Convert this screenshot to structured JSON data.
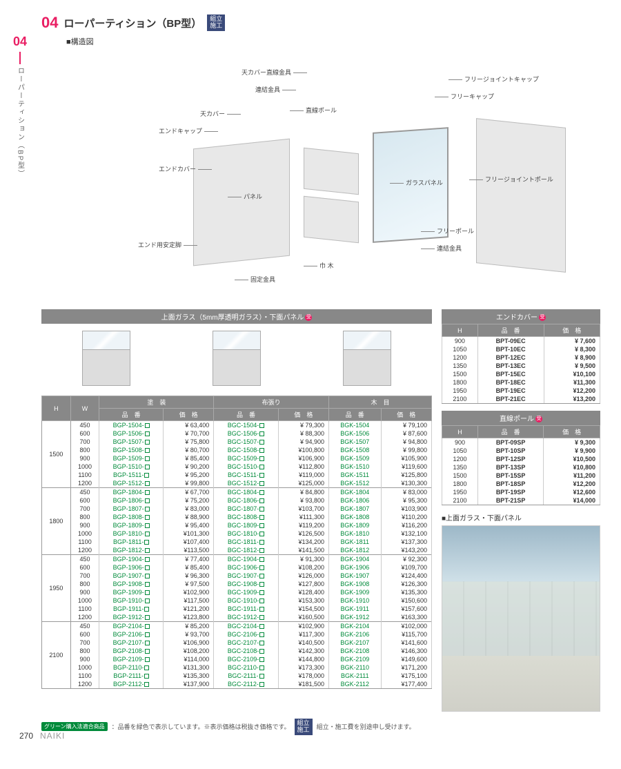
{
  "page": {
    "number": "270",
    "brand": "NAIKI",
    "section_num": "04"
  },
  "header": {
    "title": "ローパーティション（BP型）",
    "badge": "組立\n施工",
    "sub": "■構造図",
    "side_text": "ローパーティション（BP型）"
  },
  "diagram_labels": {
    "l1": "天カバー直線金具",
    "l2": "連結金具",
    "l3": "天カバー",
    "l4": "エンドキャップ",
    "l5": "直線ポール",
    "l6": "エンドカバー",
    "l7": "パネル",
    "l8": "エンド用安定脚",
    "l9": "固定金具",
    "l10": "巾 木",
    "l11": "フリージョイントキャップ",
    "l12": "フリーキャップ",
    "l13": "ガラスパネル",
    "l14": "フリージョイントポール",
    "l15": "フリーポール",
    "l16": "連結金具"
  },
  "main_band": "上面ガラス（5mm厚透明ガラス）・下面パネル",
  "main_headers": {
    "h": "H",
    "w": "W",
    "g1": "塗　装",
    "g2": "布張り",
    "g3": "木　目",
    "pn": "品　番",
    "pr": "価　格"
  },
  "groups": [
    {
      "H": "1500",
      "rows": [
        {
          "W": "450",
          "p1": "BGP-1504-",
          "v1": "¥ 63,400",
          "p2": "BGC-1504-",
          "v2": "¥ 79,300",
          "p3": "BGK-1504",
          "v3": "¥ 79,100"
        },
        {
          "W": "600",
          "p1": "BGP-1506-",
          "v1": "¥ 70,700",
          "p2": "BGC-1506-",
          "v2": "¥ 88,300",
          "p3": "BGK-1506",
          "v3": "¥ 87,600"
        },
        {
          "W": "700",
          "p1": "BGP-1507-",
          "v1": "¥ 75,800",
          "p2": "BGC-1507-",
          "v2": "¥ 94,900",
          "p3": "BGK-1507",
          "v3": "¥ 94,800"
        },
        {
          "W": "800",
          "p1": "BGP-1508-",
          "v1": "¥ 80,700",
          "p2": "BGC-1508-",
          "v2": "¥100,800",
          "p3": "BGK-1508",
          "v3": "¥ 99,800"
        },
        {
          "W": "900",
          "p1": "BGP-1509-",
          "v1": "¥ 85,400",
          "p2": "BGC-1509-",
          "v2": "¥106,900",
          "p3": "BGK-1509",
          "v3": "¥105,900"
        },
        {
          "W": "1000",
          "p1": "BGP-1510-",
          "v1": "¥ 90,200",
          "p2": "BGC-1510-",
          "v2": "¥112,800",
          "p3": "BGK-1510",
          "v3": "¥119,600"
        },
        {
          "W": "1100",
          "p1": "BGP-1511-",
          "v1": "¥ 95,200",
          "p2": "BGC-1511-",
          "v2": "¥119,000",
          "p3": "BGK-1511",
          "v3": "¥125,800"
        },
        {
          "W": "1200",
          "p1": "BGP-1512-",
          "v1": "¥ 99,800",
          "p2": "BGC-1512-",
          "v2": "¥125,000",
          "p3": "BGK-1512",
          "v3": "¥130,300"
        }
      ]
    },
    {
      "H": "1800",
      "rows": [
        {
          "W": "450",
          "p1": "BGP-1804-",
          "v1": "¥ 67,700",
          "p2": "BGC-1804-",
          "v2": "¥ 84,800",
          "p3": "BGK-1804",
          "v3": "¥ 83,000"
        },
        {
          "W": "600",
          "p1": "BGP-1806-",
          "v1": "¥ 75,200",
          "p2": "BGC-1806-",
          "v2": "¥ 93,800",
          "p3": "BGK-1806",
          "v3": "¥ 95,300"
        },
        {
          "W": "700",
          "p1": "BGP-1807-",
          "v1": "¥ 83,000",
          "p2": "BGC-1807-",
          "v2": "¥103,700",
          "p3": "BGK-1807",
          "v3": "¥103,900"
        },
        {
          "W": "800",
          "p1": "BGP-1808-",
          "v1": "¥ 88,900",
          "p2": "BGC-1808-",
          "v2": "¥111,300",
          "p3": "BGK-1808",
          "v3": "¥110,200"
        },
        {
          "W": "900",
          "p1": "BGP-1809-",
          "v1": "¥ 95,400",
          "p2": "BGC-1809-",
          "v2": "¥119,200",
          "p3": "BGK-1809",
          "v3": "¥116,200"
        },
        {
          "W": "1000",
          "p1": "BGP-1810-",
          "v1": "¥101,300",
          "p2": "BGC-1810-",
          "v2": "¥126,500",
          "p3": "BGK-1810",
          "v3": "¥132,100"
        },
        {
          "W": "1100",
          "p1": "BGP-1811-",
          "v1": "¥107,400",
          "p2": "BGC-1811-",
          "v2": "¥134,200",
          "p3": "BGK-1811",
          "v3": "¥137,300"
        },
        {
          "W": "1200",
          "p1": "BGP-1812-",
          "v1": "¥113,500",
          "p2": "BGC-1812-",
          "v2": "¥141,500",
          "p3": "BGK-1812",
          "v3": "¥143,200"
        }
      ]
    },
    {
      "H": "1950",
      "rows": [
        {
          "W": "450",
          "p1": "BGP-1904-",
          "v1": "¥ 77,400",
          "p2": "BGC-1904-",
          "v2": "¥ 91,300",
          "p3": "BGK-1904",
          "v3": "¥ 92,300"
        },
        {
          "W": "600",
          "p1": "BGP-1906-",
          "v1": "¥ 85,400",
          "p2": "BGC-1906-",
          "v2": "¥108,200",
          "p3": "BGK-1906",
          "v3": "¥109,700"
        },
        {
          "W": "700",
          "p1": "BGP-1907-",
          "v1": "¥ 96,300",
          "p2": "BGC-1907-",
          "v2": "¥126,000",
          "p3": "BGK-1907",
          "v3": "¥124,400"
        },
        {
          "W": "800",
          "p1": "BGP-1908-",
          "v1": "¥ 97,500",
          "p2": "BGC-1908-",
          "v2": "¥127,800",
          "p3": "BGK-1908",
          "v3": "¥126,300"
        },
        {
          "W": "900",
          "p1": "BGP-1909-",
          "v1": "¥102,900",
          "p2": "BGC-1909-",
          "v2": "¥128,400",
          "p3": "BGK-1909",
          "v3": "¥135,300"
        },
        {
          "W": "1000",
          "p1": "BGP-1910-",
          "v1": "¥117,500",
          "p2": "BGC-1910-",
          "v2": "¥153,300",
          "p3": "BGK-1910",
          "v3": "¥150,600"
        },
        {
          "W": "1100",
          "p1": "BGP-1911-",
          "v1": "¥121,200",
          "p2": "BGC-1911-",
          "v2": "¥154,500",
          "p3": "BGK-1911",
          "v3": "¥157,600"
        },
        {
          "W": "1200",
          "p1": "BGP-1912-",
          "v1": "¥123,800",
          "p2": "BGC-1912-",
          "v2": "¥160,500",
          "p3": "BGK-1912",
          "v3": "¥163,300"
        }
      ]
    },
    {
      "H": "2100",
      "rows": [
        {
          "W": "450",
          "p1": "BGP-2104-",
          "v1": "¥ 85,200",
          "p2": "BGC-2104-",
          "v2": "¥102,900",
          "p3": "BGK-2104",
          "v3": "¥102,000"
        },
        {
          "W": "600",
          "p1": "BGP-2106-",
          "v1": "¥ 93,700",
          "p2": "BGC-2106-",
          "v2": "¥117,300",
          "p3": "BGK-2106",
          "v3": "¥115,700"
        },
        {
          "W": "700",
          "p1": "BGP-2107-",
          "v1": "¥106,900",
          "p2": "BGC-2107-",
          "v2": "¥140,500",
          "p3": "BGK-2107",
          "v3": "¥141,600"
        },
        {
          "W": "800",
          "p1": "BGP-2108-",
          "v1": "¥108,200",
          "p2": "BGC-2108-",
          "v2": "¥142,300",
          "p3": "BGK-2108",
          "v3": "¥146,300"
        },
        {
          "W": "900",
          "p1": "BGP-2109-",
          "v1": "¥114,000",
          "p2": "BGC-2109-",
          "v2": "¥144,800",
          "p3": "BGK-2109",
          "v3": "¥149,600"
        },
        {
          "W": "1000",
          "p1": "BGP-2110-",
          "v1": "¥131,300",
          "p2": "BGC-2110-",
          "v2": "¥173,300",
          "p3": "BGK-2110",
          "v3": "¥171,200"
        },
        {
          "W": "1100",
          "p1": "BGP-2111-",
          "v1": "¥135,300",
          "p2": "BGC-2111-",
          "v2": "¥178,000",
          "p3": "BGK-2111",
          "v3": "¥175,100"
        },
        {
          "W": "1200",
          "p1": "BGP-2112-",
          "v1": "¥137,900",
          "p2": "BGC-2112-",
          "v2": "¥181,500",
          "p3": "BGK-2112",
          "v3": "¥177,400"
        }
      ]
    }
  ],
  "end_cover": {
    "title": "エンドカバー",
    "rows": [
      {
        "H": "900",
        "pn": "BPT-09EC",
        "pr": "¥ 7,600"
      },
      {
        "H": "1050",
        "pn": "BPT-10EC",
        "pr": "¥ 8,300"
      },
      {
        "H": "1200",
        "pn": "BPT-12EC",
        "pr": "¥ 8,900"
      },
      {
        "H": "1350",
        "pn": "BPT-13EC",
        "pr": "¥ 9,500"
      },
      {
        "H": "1500",
        "pn": "BPT-15EC",
        "pr": "¥10,100"
      },
      {
        "H": "1800",
        "pn": "BPT-18EC",
        "pr": "¥11,300"
      },
      {
        "H": "1950",
        "pn": "BPT-19EC",
        "pr": "¥12,200"
      },
      {
        "H": "2100",
        "pn": "BPT-21EC",
        "pr": "¥13,200"
      }
    ]
  },
  "pole": {
    "title": "直線ポール",
    "rows": [
      {
        "H": "900",
        "pn": "BPT-09SP",
        "pr": "¥ 9,300"
      },
      {
        "H": "1050",
        "pn": "BPT-10SP",
        "pr": "¥ 9,900"
      },
      {
        "H": "1200",
        "pn": "BPT-12SP",
        "pr": "¥10,500"
      },
      {
        "H": "1350",
        "pn": "BPT-13SP",
        "pr": "¥10,800"
      },
      {
        "H": "1500",
        "pn": "BPT-15SP",
        "pr": "¥11,200"
      },
      {
        "H": "1800",
        "pn": "BPT-18SP",
        "pr": "¥12,200"
      },
      {
        "H": "1950",
        "pn": "BPT-19SP",
        "pr": "¥12,600"
      },
      {
        "H": "2100",
        "pn": "BPT-21SP",
        "pr": "¥14,000"
      }
    ]
  },
  "photo_caption": "■上面ガラス・下面パネル",
  "footnote": {
    "eco": "グリーン購入法適合商品",
    "text1": "：品番を緑色で表示しています。※表示価格は税抜き価格です。",
    "badge2": "組立\n施工",
    "text2": "組立・施工費を別途申し受けます。"
  }
}
